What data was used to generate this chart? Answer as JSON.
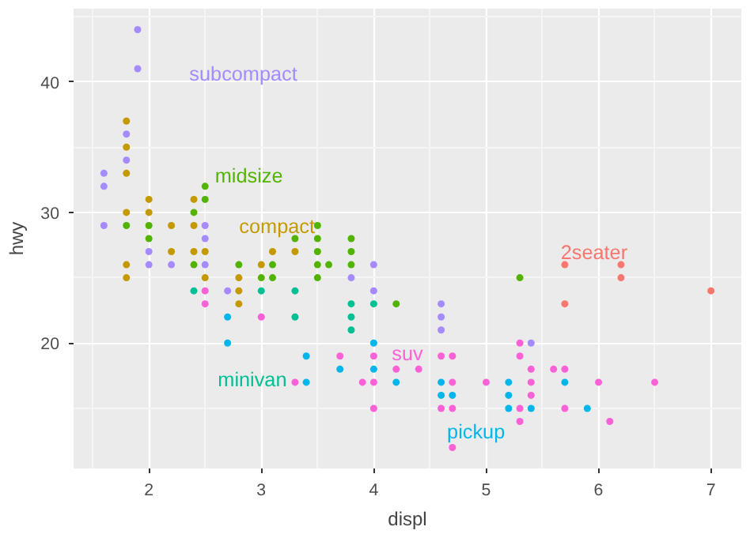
{
  "chart_data": {
    "type": "scatter",
    "xlabel": "displ",
    "ylabel": "hwy",
    "xlim": [
      1.33,
      7.27
    ],
    "ylim": [
      10.4,
      45.6
    ],
    "xticks": [
      2,
      3,
      4,
      5,
      6,
      7
    ],
    "yticks": [
      20,
      30,
      40
    ],
    "grid": true,
    "marker": "circle",
    "series": [
      {
        "name": "2seater",
        "color": "#f8766d",
        "x": [
          5.7,
          6.2,
          6.2,
          7.0,
          5.7
        ],
        "values": [
          26,
          26,
          25,
          24,
          23
        ]
      },
      {
        "name": "compact",
        "color": "#c49a00",
        "x": [
          1.8,
          1.8,
          1.8,
          2.0,
          2.4,
          1.8,
          2.0,
          2.2,
          2.4,
          2.2,
          2.4,
          2.5,
          3.1,
          3.3,
          1.8,
          3.0,
          1.8,
          2.5,
          2.8,
          2.8,
          2.8
        ],
        "values": [
          37,
          35,
          33,
          31,
          31,
          30,
          30,
          29,
          29,
          27,
          27,
          27,
          27,
          27,
          26,
          26,
          25,
          25,
          25,
          24,
          23
        ]
      },
      {
        "name": "midsize",
        "color": "#53b400",
        "x": [
          2.5,
          2.5,
          2.4,
          1.8,
          2.0,
          3.5,
          2.0,
          3.3,
          3.5,
          3.8,
          3.5,
          3.8,
          2.4,
          2.8,
          3.1,
          3.5,
          3.6,
          3.8,
          3.0,
          3.1,
          3.5,
          4.2,
          5.3
        ],
        "values": [
          32,
          31,
          30,
          29,
          29,
          29,
          28,
          28,
          28,
          28,
          27,
          27,
          26,
          26,
          26,
          26,
          26,
          26,
          25,
          25,
          25,
          23,
          25
        ]
      },
      {
        "name": "minivan",
        "color": "#00c094",
        "x": [
          2.4,
          3.0,
          3.3,
          3.8,
          4.0,
          3.3,
          3.8,
          3.8
        ],
        "values": [
          24,
          24,
          24,
          23,
          23,
          22,
          22,
          21
        ]
      },
      {
        "name": "pickup",
        "color": "#00b6eb",
        "x": [
          2.7,
          2.7,
          4.0,
          3.4,
          3.7,
          4.0,
          3.4,
          4.2,
          4.6,
          5.2,
          5.7,
          4.6,
          4.7,
          5.2,
          5.2,
          5.4,
          5.9
        ],
        "values": [
          22,
          20,
          20,
          19,
          18,
          18,
          17,
          17,
          17,
          17,
          17,
          16,
          16,
          16,
          15,
          15,
          15
        ]
      },
      {
        "name": "subcompact",
        "color": "#a58aff",
        "x": [
          1.9,
          1.9,
          1.8,
          1.8,
          1.6,
          1.6,
          1.6,
          2.5,
          2.5,
          2.0,
          2.0,
          2.2,
          2.5,
          4.0,
          3.8,
          2.7,
          4.0,
          4.6,
          4.6,
          4.6,
          5.4
        ],
        "values": [
          44,
          41,
          36,
          34,
          33,
          32,
          29,
          29,
          28,
          27,
          26,
          26,
          26,
          26,
          25,
          24,
          24,
          23,
          22,
          21,
          20
        ]
      },
      {
        "name": "suv",
        "color": "#fb61d7",
        "x": [
          2.5,
          2.5,
          3.0,
          3.7,
          4.0,
          4.6,
          4.7,
          5.3,
          5.3,
          4.2,
          4.4,
          5.4,
          5.6,
          5.7,
          3.3,
          3.9,
          4.0,
          4.7,
          5.0,
          5.4,
          6.0,
          6.5,
          5.4,
          4.0,
          4.6,
          4.7,
          5.3,
          5.7,
          5.3,
          6.1,
          4.7
        ],
        "values": [
          24,
          23,
          22,
          19,
          19,
          19,
          19,
          19,
          20,
          18,
          18,
          18,
          18,
          18,
          17,
          17,
          17,
          17,
          17,
          17,
          17,
          17,
          16,
          15,
          15,
          15,
          15,
          15,
          14,
          14,
          12
        ]
      }
    ]
  }
}
